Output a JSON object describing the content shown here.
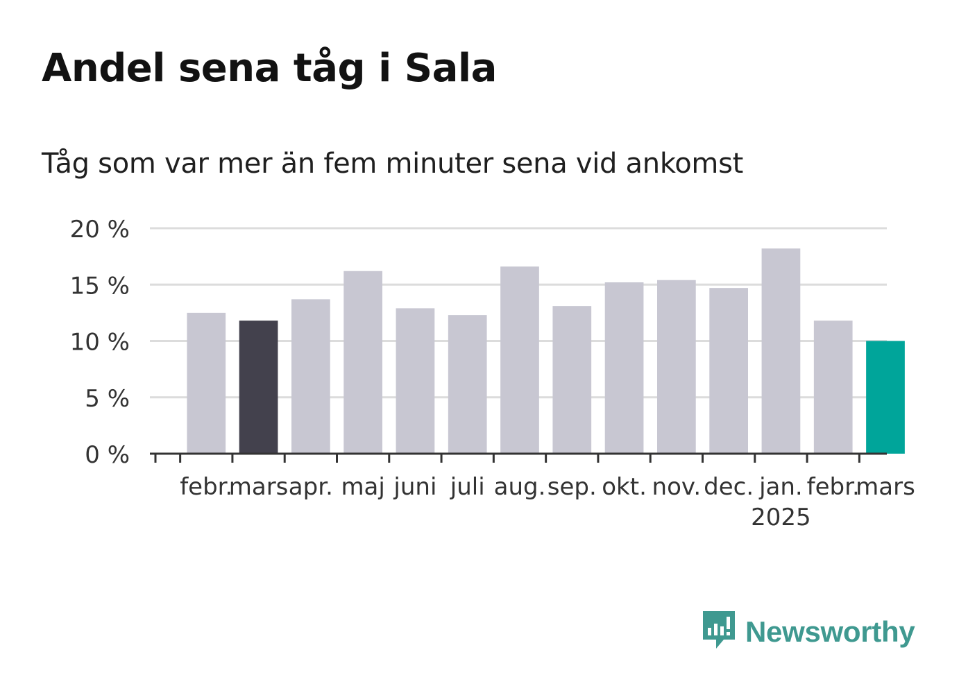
{
  "title": "Andel sena tåg i Sala",
  "subtitle": "Tåg som var mer än fem minuter sena vid ankomst",
  "brand": {
    "name": "Newsworthy",
    "color": "#3f9990"
  },
  "colors": {
    "default_bar": "#c8c7d2",
    "highlight_prev": "#43414d",
    "highlight_current": "#00a59a",
    "grid": "#dcdcdc",
    "axis": "#333333",
    "text": "#333333"
  },
  "chart_data": {
    "type": "bar",
    "categories": [
      "febr.",
      "mars",
      "apr.",
      "maj",
      "juni",
      "juli",
      "aug.",
      "sep.",
      "okt.",
      "nov.",
      "dec.",
      "jan.",
      "febr.",
      "mars"
    ],
    "year_labels": [
      {
        "index": 11,
        "label": "2025"
      }
    ],
    "values": [
      12.5,
      11.8,
      13.7,
      16.2,
      12.9,
      12.3,
      16.6,
      13.1,
      15.2,
      15.4,
      14.7,
      18.2,
      11.8,
      10.0
    ],
    "highlight": {
      "1": "highlight_prev",
      "13": "highlight_current"
    },
    "yticks": [
      0,
      5,
      10,
      15,
      20
    ],
    "ytick_labels": [
      "0 %",
      "5 %",
      "10 %",
      "15 %",
      "20 %"
    ],
    "ylim": [
      0,
      20
    ],
    "grid": true,
    "xlabel": "",
    "ylabel": ""
  }
}
